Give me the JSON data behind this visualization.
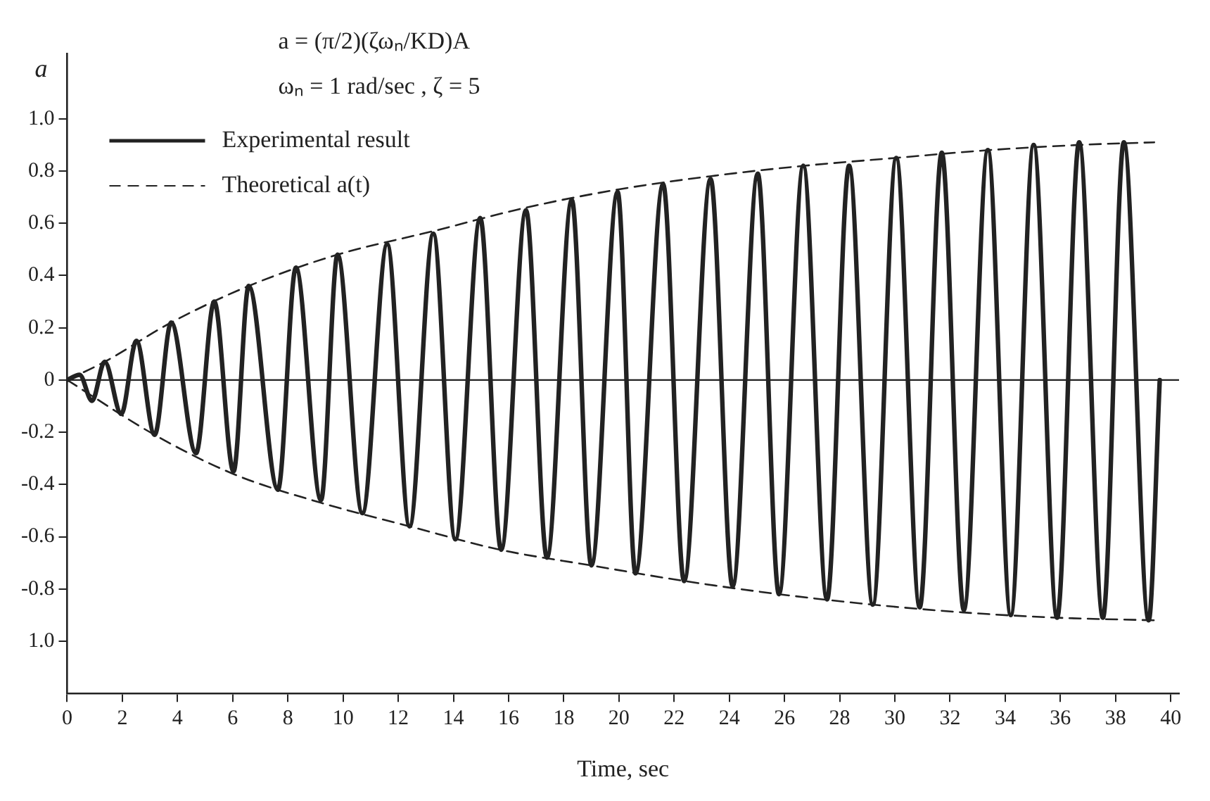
{
  "chart_data": {
    "type": "line",
    "annotations": [
      "a = (π/2)(ζωₙ/KD)A",
      "ωₙ = 1 rad/sec , ζ = 5"
    ],
    "xlabel": "Time, sec",
    "ylabel": "a",
    "legend": "top left",
    "xlim": [
      0,
      40.3
    ],
    "xticks": [
      0,
      2,
      4,
      6,
      8,
      10,
      12,
      14,
      16,
      18,
      20,
      22,
      24,
      26,
      28,
      30,
      32,
      34,
      36,
      38,
      40
    ],
    "ylim": [
      -1.2,
      1.25
    ],
    "yticks": [
      {
        "value": -1,
        "label": "1.0"
      },
      -0.8,
      -0.6,
      -0.4,
      -0.2,
      0,
      0.2,
      0.4,
      0.6,
      0.8,
      {
        "value": 1,
        "label": "1.0"
      }
    ],
    "ref_lines": [
      {
        "axis": "y",
        "value": 0,
        "color": "#222222"
      }
    ],
    "series": [
      {
        "name": "Experimental result",
        "color": "#222222",
        "line_style": "solid",
        "x": [
          0,
          0.45,
          0.9,
          1.36,
          1.96,
          2.51,
          3.17,
          3.77,
          4.67,
          5.33,
          6.03,
          6.58,
          7.64,
          8.29,
          9.2,
          9.8,
          10.7,
          11.6,
          12.41,
          13.27,
          14.07,
          14.97,
          15.73,
          16.63,
          17.39,
          18.29,
          19.0,
          19.95,
          20.6,
          21.6,
          22.36,
          23.32,
          24.12,
          25.03,
          25.8,
          26.68,
          27.54,
          28.34,
          29.2,
          30.05,
          30.9,
          31.7,
          32.5,
          33.37,
          34.2,
          35.03,
          35.88,
          36.68,
          37.54,
          38.3,
          39.2,
          39.6
        ],
        "values": [
          0,
          0.02,
          -0.08,
          0.07,
          -0.13,
          0.15,
          -0.21,
          0.22,
          -0.28,
          0.3,
          -0.35,
          0.36,
          -0.42,
          0.43,
          -0.46,
          0.48,
          -0.51,
          0.52,
          -0.56,
          0.56,
          -0.61,
          0.62,
          -0.65,
          0.65,
          -0.68,
          0.69,
          -0.71,
          0.72,
          -0.74,
          0.75,
          -0.77,
          0.77,
          -0.79,
          0.79,
          -0.82,
          0.82,
          -0.84,
          0.82,
          -0.86,
          0.85,
          -0.87,
          0.87,
          -0.88,
          0.88,
          -0.9,
          0.9,
          -0.91,
          0.91,
          -0.91,
          0.91,
          -0.92,
          0
        ]
      },
      {
        "name": "Theoretical a(t)",
        "color": "#222222",
        "line_style": "dashed",
        "x": [
          0,
          1.36,
          3.77,
          6.58,
          9.8,
          13.27,
          16.63,
          20,
          23.3,
          26.7,
          30,
          33.4,
          36.7,
          39.4
        ],
        "values": [
          0,
          0.07,
          0.22,
          0.36,
          0.48,
          0.57,
          0.66,
          0.73,
          0.78,
          0.82,
          0.85,
          0.88,
          0.9,
          0.91
        ]
      },
      {
        "color": "#222222",
        "line_style": "dashed",
        "x": [
          0,
          3.17,
          6.03,
          9.2,
          12.4,
          15.7,
          19,
          22.4,
          25.8,
          29.2,
          32.5,
          35.9,
          39.4
        ],
        "values": [
          0,
          -0.21,
          -0.36,
          -0.47,
          -0.56,
          -0.65,
          -0.71,
          -0.77,
          -0.82,
          -0.86,
          -0.89,
          -0.91,
          -0.92
        ]
      }
    ]
  }
}
